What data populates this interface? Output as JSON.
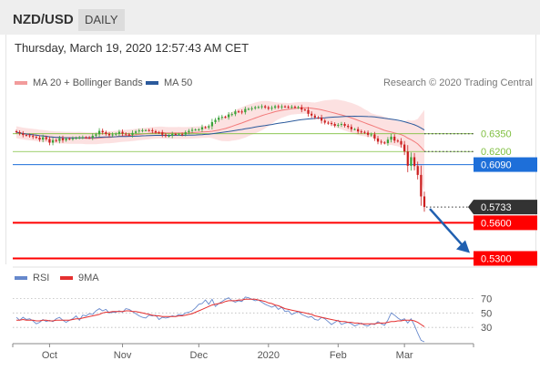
{
  "header": {
    "symbol": "NZD/USD",
    "period": "DAILY"
  },
  "datetime": "Thursday, March 19, 2020 12:57:43 AM CET",
  "legend": {
    "ma20": {
      "label": "MA 20 + Bollinger Bands",
      "color": "#f29b9b"
    },
    "ma50": {
      "label": "MA 50",
      "color": "#2b5a9c"
    }
  },
  "credit": "Research © 2020 Trading Central",
  "rsi_legend": {
    "rsi": {
      "label": "RSI",
      "color": "#6688cc"
    },
    "ma9": {
      "label": "9MA",
      "color": "#e53030"
    }
  },
  "colors": {
    "up": "#3aa33a",
    "down": "#cc2020",
    "resistance": "#7fbf3f",
    "pivot": "#1e6fd9",
    "support": "#ff0000",
    "price": "#333333",
    "arrow": "#2060b0"
  },
  "chart_data": {
    "type": "candlestick",
    "ylim": [
      0.525,
      0.667
    ],
    "x_ticks": [
      "Oct",
      "Nov",
      "Dec",
      "2020",
      "Feb",
      "Mar"
    ],
    "levels": [
      {
        "name": "resistance-2",
        "value": 0.635,
        "label": "0.6350",
        "style": "resistance"
      },
      {
        "name": "resistance-1",
        "value": 0.62,
        "label": "0.6200",
        "style": "resistance"
      },
      {
        "name": "pivot",
        "value": 0.609,
        "label": "0.6090",
        "style": "pivot"
      },
      {
        "name": "last-price",
        "value": 0.5733,
        "label": "0.5733",
        "style": "price"
      },
      {
        "name": "support-1",
        "value": 0.56,
        "label": "0.5600",
        "style": "support"
      },
      {
        "name": "support-2",
        "value": 0.53,
        "label": "0.5300",
        "style": "support"
      }
    ],
    "closes": [
      0.6363,
      0.6352,
      0.6339,
      0.6337,
      0.6331,
      0.6323,
      0.6317,
      0.63,
      0.632,
      0.6305,
      0.6275,
      0.6296,
      0.6289,
      0.6312,
      0.6295,
      0.6308,
      0.6307,
      0.6311,
      0.6316,
      0.6319,
      0.632,
      0.6318,
      0.6317,
      0.6333,
      0.6345,
      0.6374,
      0.6362,
      0.6348,
      0.6337,
      0.6344,
      0.635,
      0.6366,
      0.6351,
      0.6344,
      0.634,
      0.6357,
      0.6369,
      0.6377,
      0.6379,
      0.638,
      0.6379,
      0.6371,
      0.6361,
      0.636,
      0.6342,
      0.6331,
      0.6333,
      0.6347,
      0.6345,
      0.6345,
      0.6344,
      0.6362,
      0.6374,
      0.6383,
      0.6385,
      0.6386,
      0.6405,
      0.6402,
      0.6413,
      0.6448,
      0.6467,
      0.6485,
      0.6492,
      0.6489,
      0.6512,
      0.6515,
      0.6538,
      0.6537,
      0.6531,
      0.6559,
      0.6559,
      0.6564,
      0.6573,
      0.6575,
      0.6581,
      0.6571,
      0.6562,
      0.6569,
      0.6581,
      0.6573,
      0.658,
      0.6577,
      0.6574,
      0.6577,
      0.6571,
      0.6573,
      0.6553,
      0.6551,
      0.6518,
      0.6503,
      0.6487,
      0.6486,
      0.646,
      0.6443,
      0.6439,
      0.6432,
      0.6417,
      0.6425,
      0.6432,
      0.6417,
      0.6407,
      0.6388,
      0.6389,
      0.6369,
      0.6365,
      0.6359,
      0.6341,
      0.6344,
      0.631,
      0.6283,
      0.6276,
      0.6271,
      0.63,
      0.6325,
      0.6292,
      0.6288,
      0.6259,
      0.62,
      0.608,
      0.6152,
      0.6077,
      0.6003,
      0.5822,
      0.5733
    ],
    "rsi": {
      "ticks": [
        70,
        50,
        30
      ],
      "ylim": [
        10,
        82
      ],
      "values": [
        44,
        40,
        44,
        41,
        42,
        39,
        35,
        37,
        41,
        38,
        40,
        38,
        42,
        44,
        40,
        37,
        40,
        42,
        46,
        40,
        47,
        46,
        49,
        48,
        53,
        56,
        53,
        55,
        50,
        51,
        51,
        53,
        51,
        56,
        55,
        52,
        49,
        46,
        44,
        43,
        47,
        46,
        47,
        41,
        44,
        43,
        44,
        46,
        45,
        48,
        47,
        50,
        51,
        53,
        57,
        62,
        63,
        68,
        62,
        69,
        59,
        63,
        66,
        69,
        71,
        67,
        65,
        67,
        66,
        72,
        71,
        69,
        67,
        68,
        65,
        62,
        60,
        58,
        60,
        55,
        58,
        52,
        53,
        48,
        50,
        52,
        48,
        46,
        44,
        45,
        41,
        40,
        44,
        42,
        38,
        34,
        37,
        40,
        34,
        36,
        37,
        35,
        32,
        34,
        36,
        33,
        32,
        35,
        34,
        38,
        35,
        33,
        40,
        50,
        47,
        43,
        40,
        42,
        36,
        42,
        33,
        22,
        12,
        10
      ],
      "ma9": [
        40,
        40,
        41,
        40,
        40,
        40,
        39,
        39,
        40,
        40,
        39,
        39,
        40,
        40,
        40,
        40,
        40,
        41,
        42,
        42,
        43,
        44,
        45,
        46,
        47,
        48,
        50,
        51,
        51,
        52,
        52,
        52,
        52,
        53,
        53,
        52,
        52,
        51,
        50,
        49,
        48,
        47,
        46,
        46,
        45,
        45,
        45,
        45,
        45,
        46,
        46,
        47,
        48,
        49,
        51,
        53,
        55,
        57,
        59,
        61,
        62,
        63,
        64,
        66,
        67,
        67,
        67,
        68,
        68,
        69,
        69,
        69,
        69,
        68,
        67,
        66,
        64,
        63,
        61,
        60,
        58,
        56,
        55,
        54,
        53,
        52,
        51,
        50,
        49,
        48,
        46,
        45,
        44,
        43,
        42,
        41,
        40,
        39,
        38,
        38,
        37,
        37,
        36,
        36,
        35,
        35,
        35,
        35,
        35,
        36,
        36,
        36,
        37,
        38,
        38,
        39,
        39,
        40,
        40,
        40,
        39,
        37,
        34,
        31
      ]
    }
  }
}
